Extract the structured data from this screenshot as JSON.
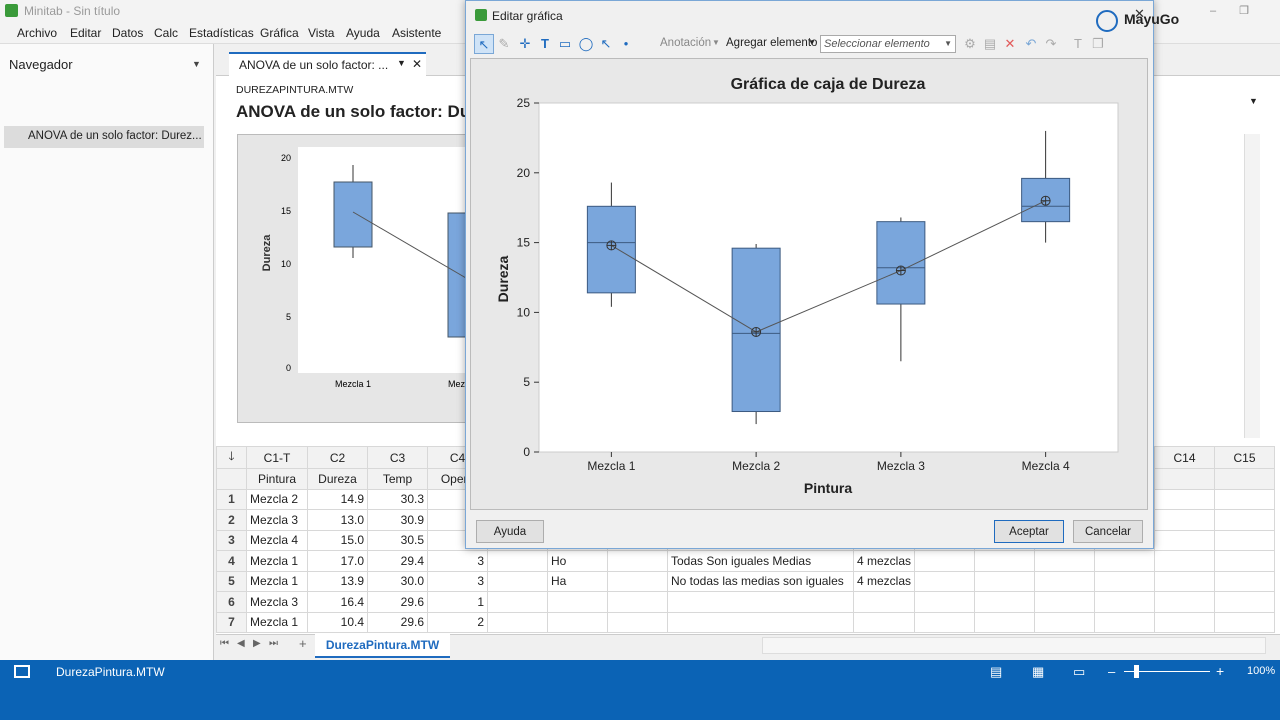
{
  "window": {
    "title": "Minitab - Sin título",
    "minimize": "–",
    "restore": "❐",
    "close": "✕"
  },
  "menu": [
    "Archivo",
    "Editar",
    "Datos",
    "Calc",
    "Estadísticas",
    "Gráfica",
    "Vista",
    "Ayuda",
    "Asistente"
  ],
  "navigator": {
    "title": "Navegador",
    "entry": "ANOVA de un solo factor: Durez..."
  },
  "output": {
    "tab_label": "ANOVA de un solo factor: ...",
    "file": "DUREZAPINTURA.MTW",
    "heading": "ANOVA de un solo factor: Du",
    "bg_ylabel": "Dureza",
    "bg_yticks": [
      "20",
      "15",
      "10",
      "5",
      "0"
    ],
    "bg_xticks": [
      "Mezcla 1",
      "Mez"
    ]
  },
  "worksheet": {
    "col_ids": [
      "",
      "C1-T",
      "C2",
      "C3",
      "C4"
    ],
    "col_names": [
      "",
      "Pintura",
      "Dureza",
      "Temp",
      "Opera"
    ],
    "extra_col_ids": [
      "C14",
      "C15"
    ],
    "rows": [
      {
        "n": "1",
        "pintura": "Mezcla 2",
        "dureza": "14.9",
        "temp": "30.3",
        "c4": "",
        "c6": "",
        "c8": "",
        "c9": ""
      },
      {
        "n": "2",
        "pintura": "Mezcla 3",
        "dureza": "13.0",
        "temp": "30.9",
        "c4": "",
        "c6": "",
        "c8": "",
        "c9": ""
      },
      {
        "n": "3",
        "pintura": "Mezcla 4",
        "dureza": "15.0",
        "temp": "30.5",
        "c4": "",
        "c6": "",
        "c8": "",
        "c9": ""
      },
      {
        "n": "4",
        "pintura": "Mezcla 1",
        "dureza": "17.0",
        "temp": "29.4",
        "c4": "3",
        "c6": "Ho",
        "c8": "Todas Son iguales Medias",
        "c9": "4 mezclas"
      },
      {
        "n": "5",
        "pintura": "Mezcla 1",
        "dureza": "13.9",
        "temp": "30.0",
        "c4": "3",
        "c6": "Ha",
        "c8": "No todas las medias son iguales",
        "c9": "4 mezclas"
      },
      {
        "n": "6",
        "pintura": "Mezcla 3",
        "dureza": "16.4",
        "temp": "29.6",
        "c4": "1",
        "c6": "",
        "c8": "",
        "c9": ""
      },
      {
        "n": "7",
        "pintura": "Mezcla 1",
        "dureza": "10.4",
        "temp": "29.6",
        "c4": "2",
        "c6": "",
        "c8": "",
        "c9": ""
      }
    ],
    "sheet_tab": "DurezaPintura.MTW",
    "add_sheet": "+"
  },
  "status": {
    "file": "DurezaPintura.MTW",
    "zoom": "100%",
    "minus": "–",
    "plus": "+"
  },
  "dialog": {
    "title": "Editar gráfica",
    "close": "✕",
    "toolbar": {
      "annotation": "Anotación",
      "add_element": "Agregar elemento",
      "select_placeholder": "Seleccionar elemento"
    },
    "buttons": {
      "help": "Ayuda",
      "ok": "Aceptar",
      "cancel": "Cancelar"
    }
  },
  "brand": "MayuGo",
  "chart_data": {
    "type": "box",
    "title": "Gráfica de caja de Dureza",
    "xlabel": "Pintura",
    "ylabel": "Dureza",
    "ylim": [
      0,
      25
    ],
    "yticks": [
      0,
      5,
      10,
      15,
      20,
      25
    ],
    "categories": [
      "Mezcla 1",
      "Mezcla 2",
      "Mezcla 3",
      "Mezcla 4"
    ],
    "boxes": [
      {
        "min": 10.4,
        "q1": 11.4,
        "median": 15.0,
        "q3": 17.6,
        "max": 19.3,
        "mean": 14.8
      },
      {
        "min": 2.0,
        "q1": 2.9,
        "median": 8.5,
        "q3": 14.6,
        "max": 14.9,
        "mean": 8.6
      },
      {
        "min": 6.5,
        "q1": 10.6,
        "median": 13.2,
        "q3": 16.5,
        "max": 16.8,
        "mean": 13.0
      },
      {
        "min": 15.0,
        "q1": 16.5,
        "median": 17.6,
        "q3": 19.6,
        "max": 23.0,
        "mean": 18.0
      }
    ],
    "box_color": "#7aa6dc",
    "grid": false
  }
}
